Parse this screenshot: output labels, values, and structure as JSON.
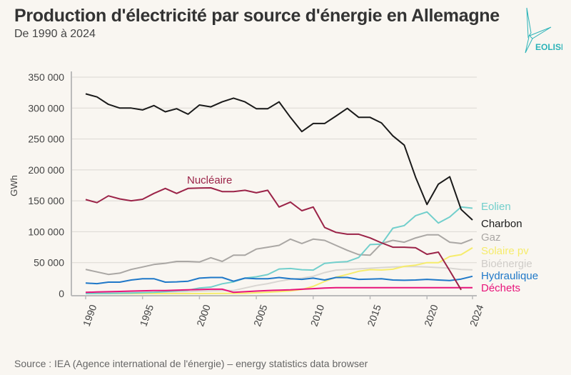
{
  "header": {
    "title": "Production d'électricité par source d'énergie en Allemagne",
    "subtitle": "De 1990 à 2024"
  },
  "logo": {
    "text": "EOLISE",
    "color": "#2bb3b8"
  },
  "source": "Source : IEA (Agence international de l'énergie) – energy statistics data browser",
  "chart_data": {
    "type": "line",
    "title": "Production d'électricité par source d'énergie en Allemagne",
    "subtitle": "De 1990 à 2024",
    "ylabel": "GWh",
    "xlabel": "",
    "ylim": [
      0,
      350000
    ],
    "xlim": [
      1990,
      2024
    ],
    "grid": "horizontal",
    "legend": "right, labels at line ends",
    "yticks": [
      0,
      50000,
      100000,
      150000,
      200000,
      250000,
      300000,
      350000
    ],
    "ytick_labels": [
      "0",
      "50 000",
      "100 000",
      "150 000",
      "200 000",
      "250 000",
      "300 000",
      "350 000"
    ],
    "xticks": [
      "1990",
      "1995",
      "2000",
      "2005",
      "2010",
      "2015",
      "2020",
      "2024"
    ],
    "x": [
      1990,
      1991,
      1992,
      1993,
      1994,
      1995,
      1996,
      1997,
      1998,
      1999,
      2000,
      2001,
      2002,
      2003,
      2004,
      2005,
      2006,
      2007,
      2008,
      2009,
      2010,
      2011,
      2012,
      2013,
      2014,
      2015,
      2016,
      2017,
      2018,
      2019,
      2020,
      2021,
      2022,
      2023,
      2024
    ],
    "series": [
      {
        "name": "Bioénergie",
        "color": "#d9d6d2",
        "values": [
          1000,
          1200,
          1400,
          1600,
          1800,
          2000,
          2200,
          2500,
          2800,
          3200,
          4000,
          4500,
          4800,
          5000,
          9000,
          13000,
          16000,
          20000,
          23000,
          25000,
          28000,
          34000,
          38000,
          39000,
          40000,
          41000,
          42000,
          43000,
          43500,
          43500,
          43000,
          42000,
          41000,
          39000,
          38500
        ]
      },
      {
        "name": "Gaz",
        "color": "#aaa7a4",
        "values": [
          39000,
          35000,
          31000,
          33000,
          39000,
          43000,
          47000,
          49000,
          52000,
          52000,
          51000,
          58000,
          52000,
          62000,
          62000,
          72000,
          75000,
          78000,
          88000,
          81000,
          88000,
          86000,
          78000,
          70000,
          63000,
          62000,
          81000,
          86000,
          83000,
          90000,
          95000,
          95000,
          83000,
          81000,
          88000
        ]
      },
      {
        "name": "Solaire pv",
        "color": "#f6ec6c",
        "values": [
          0,
          0,
          0,
          0,
          0,
          0,
          0,
          0,
          0,
          0,
          0,
          100,
          200,
          300,
          500,
          1300,
          2200,
          3100,
          4400,
          6600,
          11700,
          19600,
          26400,
          31000,
          36000,
          38700,
          38100,
          39400,
          44000,
          46000,
          50000,
          50000,
          60000,
          63000,
          74000
        ]
      },
      {
        "name": "Eolien",
        "color": "#72cfcc",
        "values": [
          0,
          200,
          300,
          600,
          900,
          1500,
          2000,
          3000,
          4500,
          5500,
          9000,
          10500,
          15800,
          19000,
          25000,
          27200,
          30700,
          39700,
          40600,
          38600,
          38000,
          48900,
          50700,
          51700,
          58500,
          79200,
          79900,
          105700,
          110000,
          126000,
          132000,
          114000,
          124000,
          140000,
          138000
        ]
      },
      {
        "name": "Hydraulique",
        "color": "#1f78c8",
        "values": [
          17000,
          16000,
          18500,
          18500,
          22000,
          24000,
          24000,
          18500,
          19000,
          20000,
          25000,
          26000,
          26000,
          20000,
          25000,
          24000,
          24000,
          26000,
          24000,
          23000,
          25000,
          22000,
          26000,
          26000,
          23000,
          23500,
          24000,
          22000,
          21500,
          22000,
          23000,
          22000,
          21000,
          23500,
          28000
        ]
      },
      {
        "name": "Déchets",
        "color": "#e8147a",
        "values": [
          2000,
          2500,
          3000,
          3500,
          4000,
          4500,
          5000,
          5000,
          5500,
          6000,
          6500,
          7000,
          7000,
          2000,
          3000,
          4000,
          5000,
          5500,
          6000,
          7000,
          8000,
          9000,
          9500,
          9600,
          9600,
          9600,
          9600,
          9600,
          9600,
          9600,
          9600,
          9600,
          9600,
          9600,
          9600
        ]
      },
      {
        "name": "Nucléaire",
        "color": "#9b2348",
        "values": [
          152000,
          147000,
          158000,
          153000,
          150000,
          152500,
          162000,
          170000,
          162000,
          170000,
          170600,
          171000,
          165000,
          165000,
          167000,
          163000,
          167000,
          140000,
          148000,
          134000,
          140000,
          107000,
          99000,
          96000,
          96000,
          90000,
          82000,
          75000,
          75000,
          74000,
          63500,
          67000,
          37000,
          6000,
          null
        ]
      },
      {
        "name": "Charbon",
        "color": "#1a1a1a",
        "values": [
          323000,
          318000,
          306000,
          300000,
          300000,
          297000,
          304000,
          294000,
          299000,
          290000,
          305000,
          302000,
          310000,
          316000,
          310000,
          299000,
          299000,
          310000,
          285000,
          262000,
          275000,
          275000,
          287000,
          299500,
          285000,
          285000,
          276000,
          255000,
          240000,
          188000,
          144000,
          177000,
          189000,
          136000,
          119000
        ]
      }
    ]
  }
}
